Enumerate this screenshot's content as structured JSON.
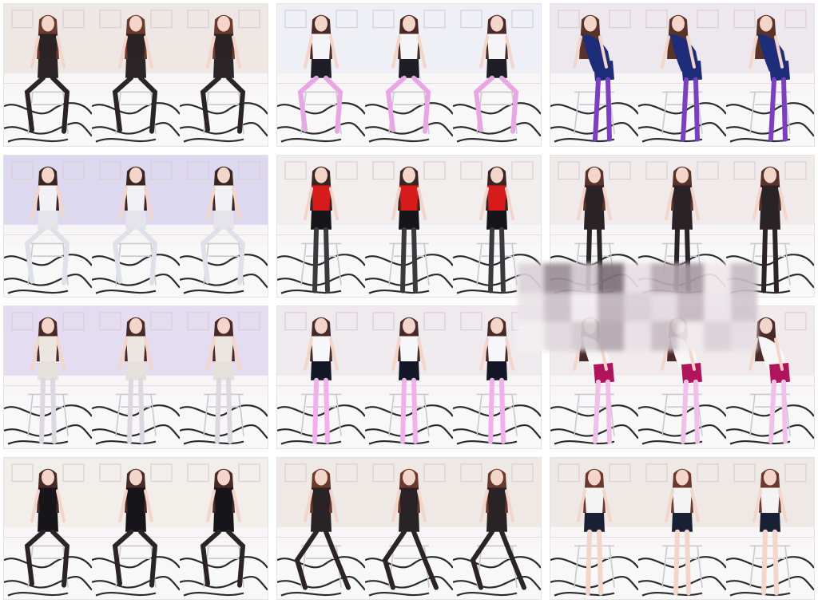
{
  "gallery": {
    "rows": 4,
    "columns": 3,
    "frames_per_cell": 3,
    "cells": [
      {
        "room": "#efe7e4",
        "top": "#2a2326",
        "bottom": "#2c2528",
        "legs": "#2b2426",
        "hair": "#6b3a2c",
        "pose": "sit"
      },
      {
        "room": "#efeff6",
        "top": "#f5f5f7",
        "bottom": "#1e1e26",
        "legs": "#e8a7e4",
        "hair": "#4a2a26",
        "pose": "sit"
      },
      {
        "room": "#ece8ee",
        "top": "#1d2d7a",
        "bottom": "#1d2d7a",
        "legs": "#7a3fc4",
        "hair": "#5a3328",
        "pose": "bend"
      },
      {
        "room": "#dcd8f0",
        "top": "#f2f2f6",
        "bottom": "#e4e4ea",
        "legs": "#e0e0e8",
        "hair": "#3a2522",
        "pose": "crouch"
      },
      {
        "room": "#f2eeee",
        "top": "#d71a1a",
        "bottom": "#15151a",
        "legs": "#3a3a3e",
        "hair": "#3a2522",
        "pose": "stand"
      },
      {
        "room": "#f0ebea",
        "top": "#2a2326",
        "bottom": "#2a2326",
        "legs": "#2b2426",
        "hair": "#5a3328",
        "pose": "stand"
      },
      {
        "room": "#e4dcf0",
        "top": "#ece6e0",
        "bottom": "#e6e0da",
        "legs": "#dcd8e0",
        "hair": "#4a2a26",
        "pose": "stand"
      },
      {
        "room": "#efeaee",
        "top": "#f7f7f9",
        "bottom": "#141826",
        "legs": "#f2b0ea",
        "hair": "#4a2a26",
        "pose": "stand"
      },
      {
        "room": "#f0eaec",
        "top": "#f6f6f6",
        "bottom": "#b0145a",
        "legs": "#f0c0e8",
        "hair": "#4a2a26",
        "pose": "bend"
      },
      {
        "room": "#f2eeea",
        "top": "#16161a",
        "bottom": "#16161a",
        "legs": "#2b2426",
        "hair": "#4a2a26",
        "pose": "sit"
      },
      {
        "room": "#efe9e6",
        "top": "#2a2326",
        "bottom": "#2a2326",
        "legs": "#2b2426",
        "hair": "#6b3a2c",
        "pose": "kneel"
      },
      {
        "room": "#efe9e6",
        "top": "#f4f4f4",
        "bottom": "#1a2034",
        "legs": "#f3d6c9",
        "hair": "#6b3a2c",
        "pose": "back"
      }
    ],
    "mosaic_colors": [
      "#d9d3d8",
      "#9b8f96",
      "#cfc7cc",
      "#7d7077",
      "#e6e0e4",
      "#b8aab2",
      "#a99aa3",
      "#efe8ec",
      "#c7bdc3",
      "#e9e4e7",
      "#cbc2c8",
      "#f1ecef",
      "#bdb2b9",
      "#d7cfd4",
      "#e2dbe0",
      "#c4b9c0",
      "#ebe5e9",
      "#d0c7cd",
      "#f4f0f2",
      "#e0d9de",
      "#d3cbd0",
      "#b4a8af",
      "#e8e2e6",
      "#c8bec4",
      "#f0ebee",
      "#dad2d7",
      "#e5dfe3"
    ]
  }
}
